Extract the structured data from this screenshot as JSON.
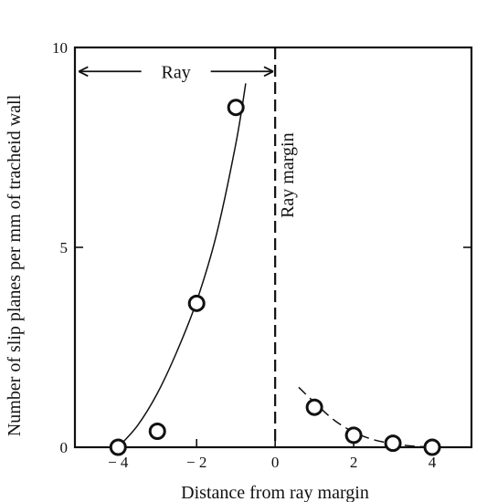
{
  "chart_data": {
    "type": "scatter",
    "title": "",
    "xlabel": "Distance from ray margin",
    "ylabel": "Number of slip planes per mm of tracheid wall",
    "xlim": [
      -5.1,
      5.0
    ],
    "ylim": [
      0,
      10
    ],
    "x_ticks": [
      -4,
      -2,
      0,
      2,
      4
    ],
    "x_tick_labels": [
      "− 4",
      "− 2",
      "0",
      "2",
      "4"
    ],
    "y_ticks": [
      0,
      5,
      10
    ],
    "y_tick_labels": [
      "0",
      "5",
      "10"
    ],
    "grid": false,
    "series": [
      {
        "name": "",
        "x": [
          -4,
          -3,
          -2,
          -1,
          1,
          2,
          3,
          4
        ],
        "y": [
          0.0,
          0.4,
          3.6,
          8.5,
          1.0,
          0.3,
          0.1,
          0.0
        ],
        "marker": "open-circle"
      }
    ],
    "fit_curves": [
      {
        "style": "solid",
        "points": [
          [
            -4.0,
            0.0
          ],
          [
            -3.5,
            0.55
          ],
          [
            -3.0,
            1.35
          ],
          [
            -2.5,
            2.4
          ],
          [
            -2.0,
            3.65
          ],
          [
            -1.5,
            5.3
          ],
          [
            -1.0,
            7.6
          ],
          [
            -0.75,
            9.1
          ]
        ]
      },
      {
        "style": "dashed",
        "points": [
          [
            0.6,
            1.5
          ],
          [
            1.0,
            1.12
          ],
          [
            1.5,
            0.68
          ],
          [
            2.0,
            0.38
          ],
          [
            2.5,
            0.19
          ],
          [
            3.0,
            0.09
          ],
          [
            3.5,
            0.03
          ],
          [
            4.0,
            0.0
          ]
        ]
      }
    ],
    "reference_line": {
      "x": 0,
      "style": "dashed",
      "label": "Ray margin"
    },
    "annotations": [
      {
        "text": "Ray",
        "from_x": -5.0,
        "to_x": -0.05,
        "arrow": "double"
      }
    ]
  }
}
